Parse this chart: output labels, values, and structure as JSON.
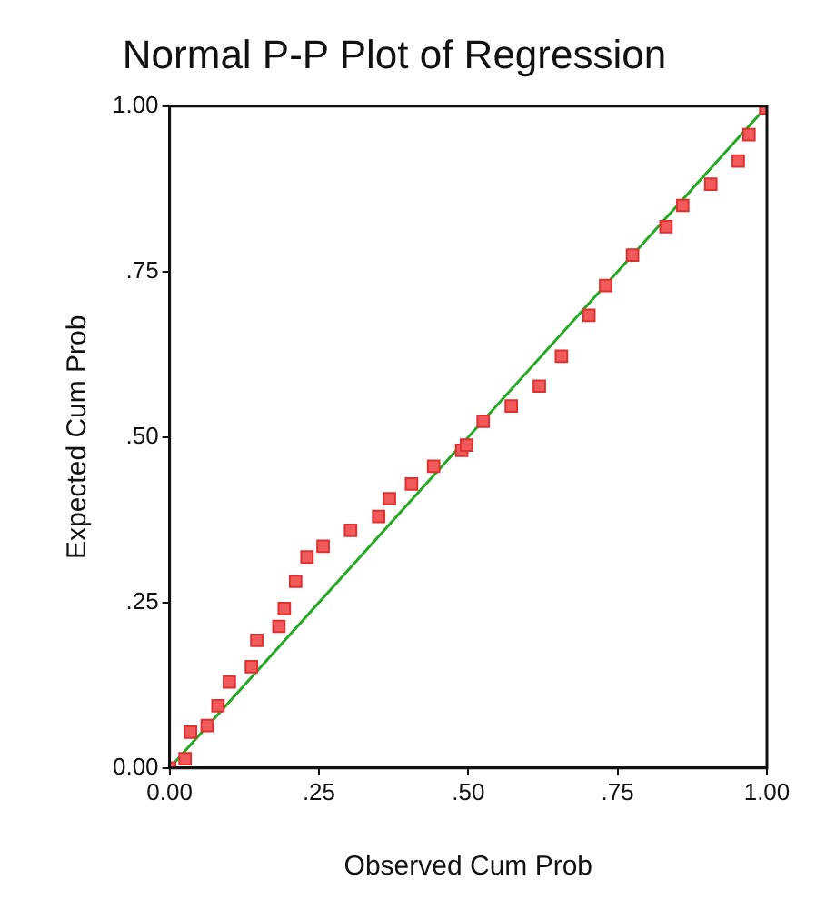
{
  "chart_data": {
    "type": "scatter",
    "title": "Normal P-P Plot of Regression",
    "xlabel": "Observed Cum Prob",
    "ylabel": "Expected Cum Prob",
    "grid": false,
    "xlim": [
      0,
      1
    ],
    "ylim": [
      0,
      1
    ],
    "xticks": [
      {
        "value": 0,
        "label": "0.00"
      },
      {
        "value": 0.25,
        "label": ".25"
      },
      {
        "value": 0.5,
        "label": ".50"
      },
      {
        "value": 0.75,
        "label": ".75"
      },
      {
        "value": 1,
        "label": "1.00"
      }
    ],
    "yticks": [
      {
        "value": 0,
        "label": "0.00"
      },
      {
        "value": 0.25,
        "label": ".25"
      },
      {
        "value": 0.5,
        "label": ".50"
      },
      {
        "value": 0.75,
        "label": ".75"
      },
      {
        "value": 1,
        "label": "1.00"
      }
    ],
    "series": [
      {
        "marker": "square",
        "color": "#f05a5a",
        "x": [
          0.0,
          0.026,
          0.035,
          0.063,
          0.081,
          0.1,
          0.137,
          0.146,
          0.183,
          0.192,
          0.211,
          0.23,
          0.257,
          0.303,
          0.35,
          0.368,
          0.405,
          0.442,
          0.489,
          0.497,
          0.525,
          0.572,
          0.619,
          0.656,
          0.702,
          0.73,
          0.775,
          0.831,
          0.859,
          0.906,
          0.952,
          0.97,
          0.998
        ],
        "values": [
          0.0,
          0.014,
          0.054,
          0.064,
          0.094,
          0.13,
          0.153,
          0.193,
          0.214,
          0.241,
          0.282,
          0.319,
          0.335,
          0.359,
          0.38,
          0.407,
          0.429,
          0.456,
          0.48,
          0.488,
          0.524,
          0.547,
          0.577,
          0.622,
          0.684,
          0.729,
          0.775,
          0.818,
          0.85,
          0.882,
          0.917,
          0.957,
          0.997
        ]
      },
      {
        "type": "line",
        "marker": "none",
        "color": "#22aa22",
        "x": [
          0,
          1
        ],
        "values": [
          0,
          1
        ]
      }
    ]
  }
}
